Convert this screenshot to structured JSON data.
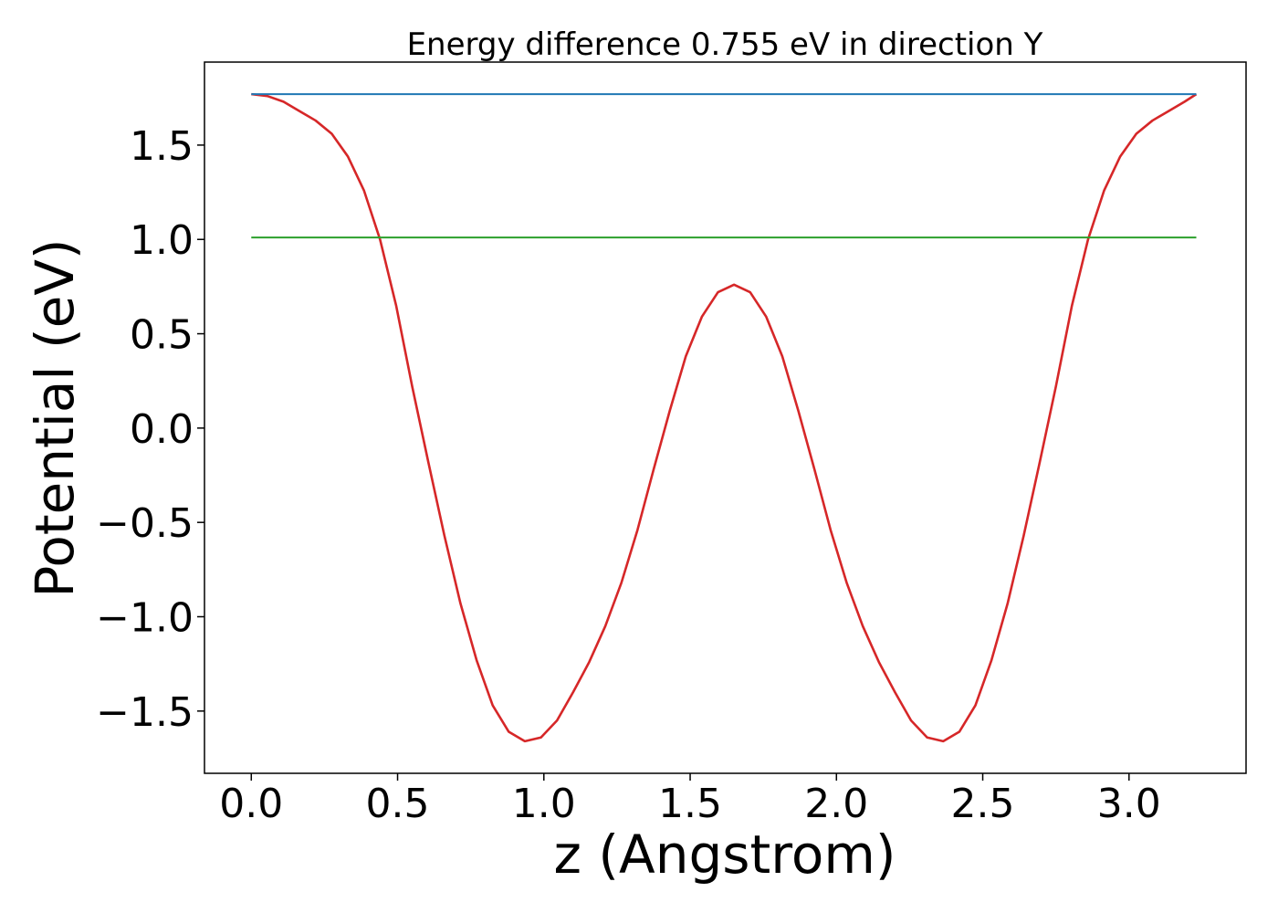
{
  "chart_data": {
    "type": "line",
    "title": "Energy difference 0.755 eV in direction Y",
    "xlabel": "z (Angstrom)",
    "ylabel": "Potential (eV)",
    "xlim": [
      -0.16,
      3.4
    ],
    "ylim": [
      -1.83,
      1.94
    ],
    "xticks": [
      0.0,
      0.5,
      1.0,
      1.5,
      2.0,
      2.5,
      3.0
    ],
    "xtick_labels": [
      "0.0",
      "0.5",
      "1.0",
      "1.5",
      "2.0",
      "2.5",
      "3.0"
    ],
    "yticks": [
      -1.5,
      -1.0,
      -0.5,
      0.0,
      0.5,
      1.0,
      1.5
    ],
    "ytick_labels": [
      "−1.5",
      "−1.0",
      "−0.5",
      "0.0",
      "0.5",
      "1.0",
      "1.5"
    ],
    "grid": false,
    "series": [
      {
        "color": "#d62728",
        "x": [
          0.0,
          0.055,
          0.11,
          0.165,
          0.22,
          0.275,
          0.33,
          0.385,
          0.44,
          0.495,
          0.55,
          0.605,
          0.66,
          0.715,
          0.77,
          0.825,
          0.88,
          0.935,
          0.99,
          1.045,
          1.1,
          1.155,
          1.21,
          1.265,
          1.32,
          1.375,
          1.43,
          1.485,
          1.54,
          1.595,
          1.65,
          1.705,
          1.76,
          1.815,
          1.87,
          1.925,
          1.98,
          2.035,
          2.09,
          2.145,
          2.2,
          2.255,
          2.31,
          2.365,
          2.42,
          2.475,
          2.53,
          2.585,
          2.64,
          2.695,
          2.75,
          2.805,
          2.86,
          2.915,
          2.97,
          3.025,
          3.08,
          3.135,
          3.19,
          3.23
        ],
        "y": [
          1.77,
          1.76,
          1.73,
          1.68,
          1.63,
          1.56,
          1.44,
          1.26,
          1.0,
          0.65,
          0.22,
          -0.18,
          -0.57,
          -0.93,
          -1.23,
          -1.47,
          -1.61,
          -1.66,
          -1.64,
          -1.55,
          -1.4,
          -1.24,
          -1.05,
          -0.82,
          -0.54,
          -0.22,
          0.09,
          0.38,
          0.59,
          0.72,
          0.76,
          0.72,
          0.59,
          0.38,
          0.09,
          -0.22,
          -0.54,
          -0.82,
          -1.05,
          -1.24,
          -1.4,
          -1.55,
          -1.64,
          -1.66,
          -1.61,
          -1.47,
          -1.23,
          -0.93,
          -0.57,
          -0.18,
          0.22,
          0.65,
          1.0,
          1.26,
          1.44,
          1.56,
          1.63,
          1.68,
          1.73,
          1.77
        ]
      },
      {
        "color": "#1f77b4",
        "x": [
          0.0,
          3.23
        ],
        "y": [
          1.77,
          1.77
        ]
      },
      {
        "color": "#2ca02c",
        "x": [
          0.0,
          3.23
        ],
        "y": [
          1.01,
          1.01
        ]
      }
    ]
  }
}
